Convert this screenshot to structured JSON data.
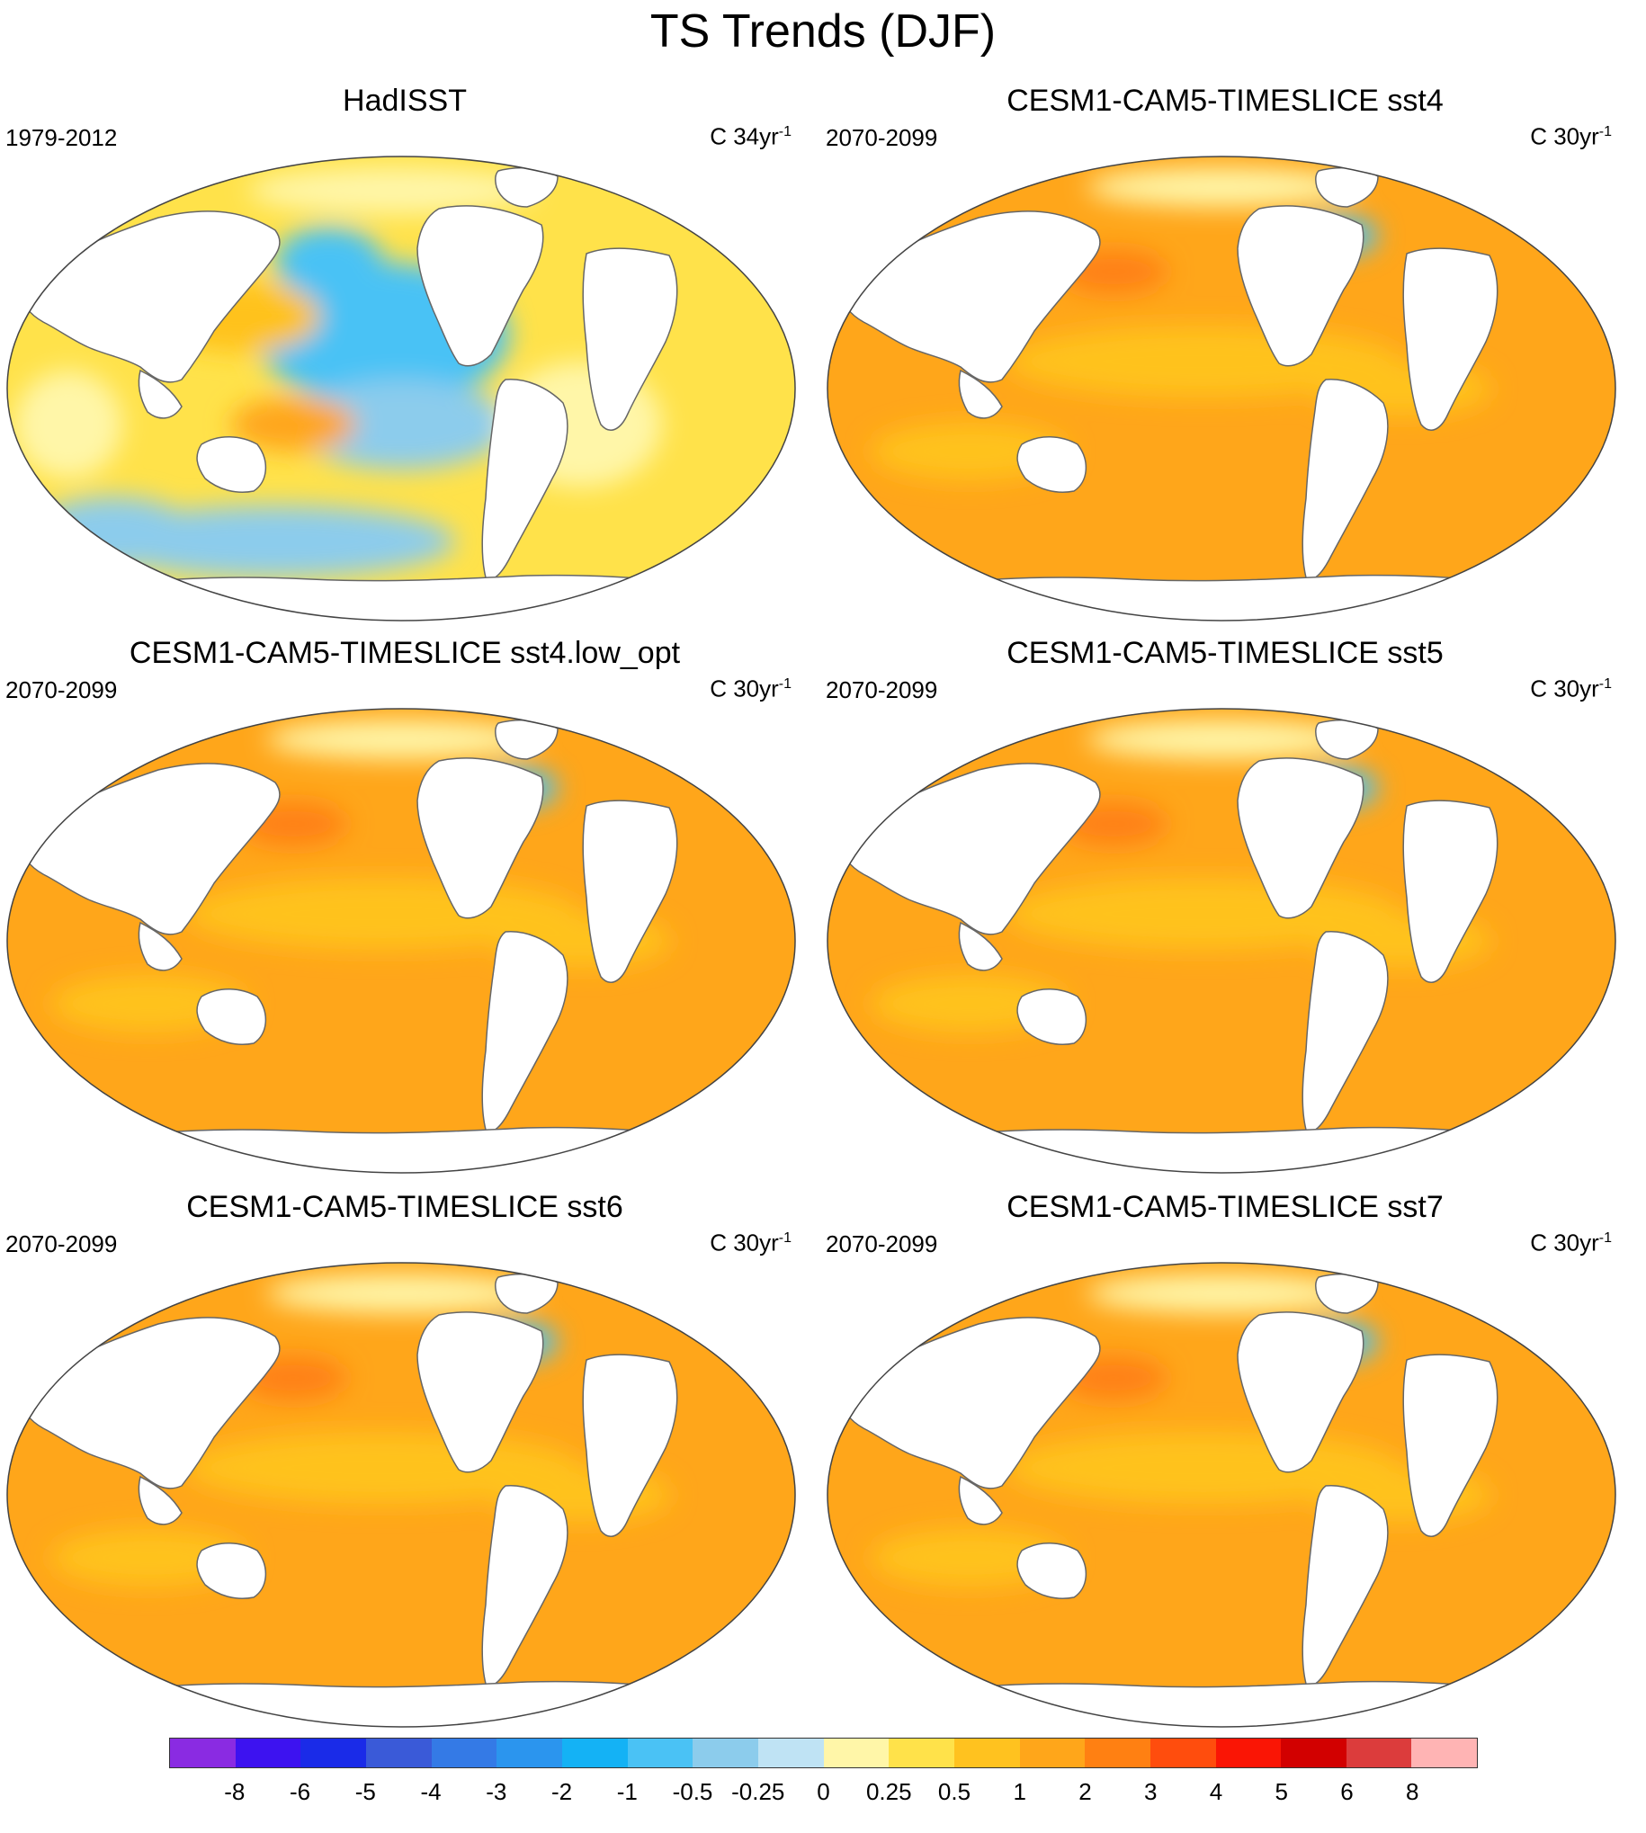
{
  "figure": {
    "title": "TS Trends (DJF)"
  },
  "panels": [
    {
      "title": "HadISST",
      "period": "1979-2012",
      "units_prefix": "C 34yr",
      "units_sup": "-1",
      "variant": "obs"
    },
    {
      "title": "CESM1-CAM5-TIMESLICE sst4",
      "period": "2070-2099",
      "units_prefix": "C 30yr",
      "units_sup": "-1",
      "variant": "model"
    },
    {
      "title": "CESM1-CAM5-TIMESLICE sst4.low_opt",
      "period": "2070-2099",
      "units_prefix": "C 30yr",
      "units_sup": "-1",
      "variant": "model"
    },
    {
      "title": "CESM1-CAM5-TIMESLICE sst5",
      "period": "2070-2099",
      "units_prefix": "C 30yr",
      "units_sup": "-1",
      "variant": "model"
    },
    {
      "title": "CESM1-CAM5-TIMESLICE sst6",
      "period": "2070-2099",
      "units_prefix": "C 30yr",
      "units_sup": "-1",
      "variant": "model"
    },
    {
      "title": "CESM1-CAM5-TIMESLICE sst7",
      "period": "2070-2099",
      "units_prefix": "C 30yr",
      "units_sup": "-1",
      "variant": "model"
    }
  ],
  "colorbar": {
    "colors": [
      "#8a2be2",
      "#3d12f0",
      "#1a2be8",
      "#3a5ad8",
      "#347ae6",
      "#2b95ee",
      "#14b2f5",
      "#4ac2f5",
      "#8cccec",
      "#bfe3f4",
      "#fff6a8",
      "#ffe24a",
      "#ffc21f",
      "#ffa61a",
      "#ff8012",
      "#ff4d0d",
      "#fa1505",
      "#d20000",
      "#dc3c3c",
      "#ffb4b4"
    ],
    "labels": [
      "-8",
      "-6",
      "-5",
      "-4",
      "-3",
      "-2",
      "-1",
      "-0.5",
      "-0.25",
      "0",
      "0.25",
      "0.5",
      "1",
      "2",
      "3",
      "4",
      "5",
      "6",
      "8"
    ]
  },
  "colors": {
    "land": "#ffffff",
    "coast": "#666666",
    "ocean_warm": "#ffa61a",
    "ocean_mid": "#ffc21f",
    "ocean_light": "#ffe24a",
    "ocean_pale": "#fff6a8",
    "ocean_cold": "#4ac2f5",
    "ocean_cool": "#8cccec",
    "ocean_hot": "#ff8012"
  }
}
